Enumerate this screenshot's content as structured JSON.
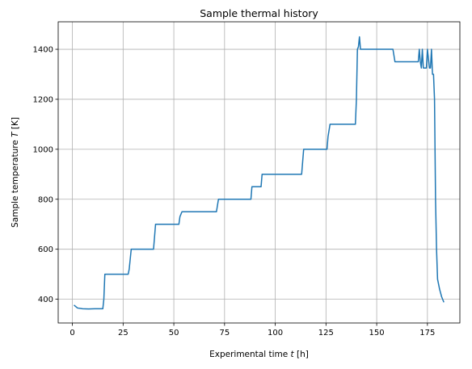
{
  "chart_data": {
    "type": "line",
    "title": "Sample thermal history",
    "xlabel_prefix": "Experimental time ",
    "xlabel_var": "t",
    "xlabel_suffix": " [h]",
    "ylabel_prefix": "Sample temperature ",
    "ylabel_var": "T",
    "ylabel_suffix": " [K]",
    "xlim": [
      -7,
      191
    ],
    "ylim": [
      305,
      1510
    ],
    "xticks": [
      0,
      25,
      50,
      75,
      100,
      125,
      150,
      175
    ],
    "yticks": [
      400,
      600,
      800,
      1000,
      1200,
      1400
    ],
    "grid": true,
    "series_color": "#1f77b4",
    "series": [
      {
        "x": [
          1,
          2.5,
          5,
          8,
          11,
          13.5,
          15,
          15.5,
          16,
          20,
          25,
          27.5,
          28,
          29,
          35,
          40,
          40.5,
          41,
          45,
          52.5,
          53,
          54,
          60,
          65,
          70,
          71,
          72,
          80,
          88,
          88.5,
          89,
          90,
          93,
          93.5,
          94,
          100,
          105,
          113,
          113.5,
          114,
          120,
          125.5,
          126,
          127,
          134,
          139.5,
          140,
          140.5,
          141,
          141.5,
          142,
          145,
          150,
          155,
          158,
          159,
          165,
          170,
          170.5,
          171,
          171.5,
          172,
          172.5,
          173,
          174,
          174.5,
          175,
          176,
          176.5,
          177,
          177.5,
          178,
          178.5,
          179,
          179.5,
          180,
          181,
          182,
          183
        ],
        "y": [
          375,
          365,
          362,
          361,
          362,
          362,
          362,
          400,
          500,
          500,
          500,
          500,
          520,
          600,
          600,
          600,
          650,
          700,
          700,
          700,
          730,
          750,
          750,
          750,
          750,
          750,
          800,
          800,
          800,
          850,
          850,
          850,
          850,
          900,
          900,
          900,
          900,
          900,
          950,
          1000,
          1000,
          1000,
          1050,
          1100,
          1100,
          1100,
          1200,
          1400,
          1410,
          1450,
          1400,
          1400,
          1400,
          1400,
          1400,
          1350,
          1350,
          1350,
          1350,
          1400,
          1350,
          1325,
          1400,
          1325,
          1325,
          1325,
          1400,
          1325,
          1325,
          1400,
          1300,
          1300,
          1200,
          800,
          600,
          480,
          440,
          410,
          390
        ]
      }
    ]
  }
}
